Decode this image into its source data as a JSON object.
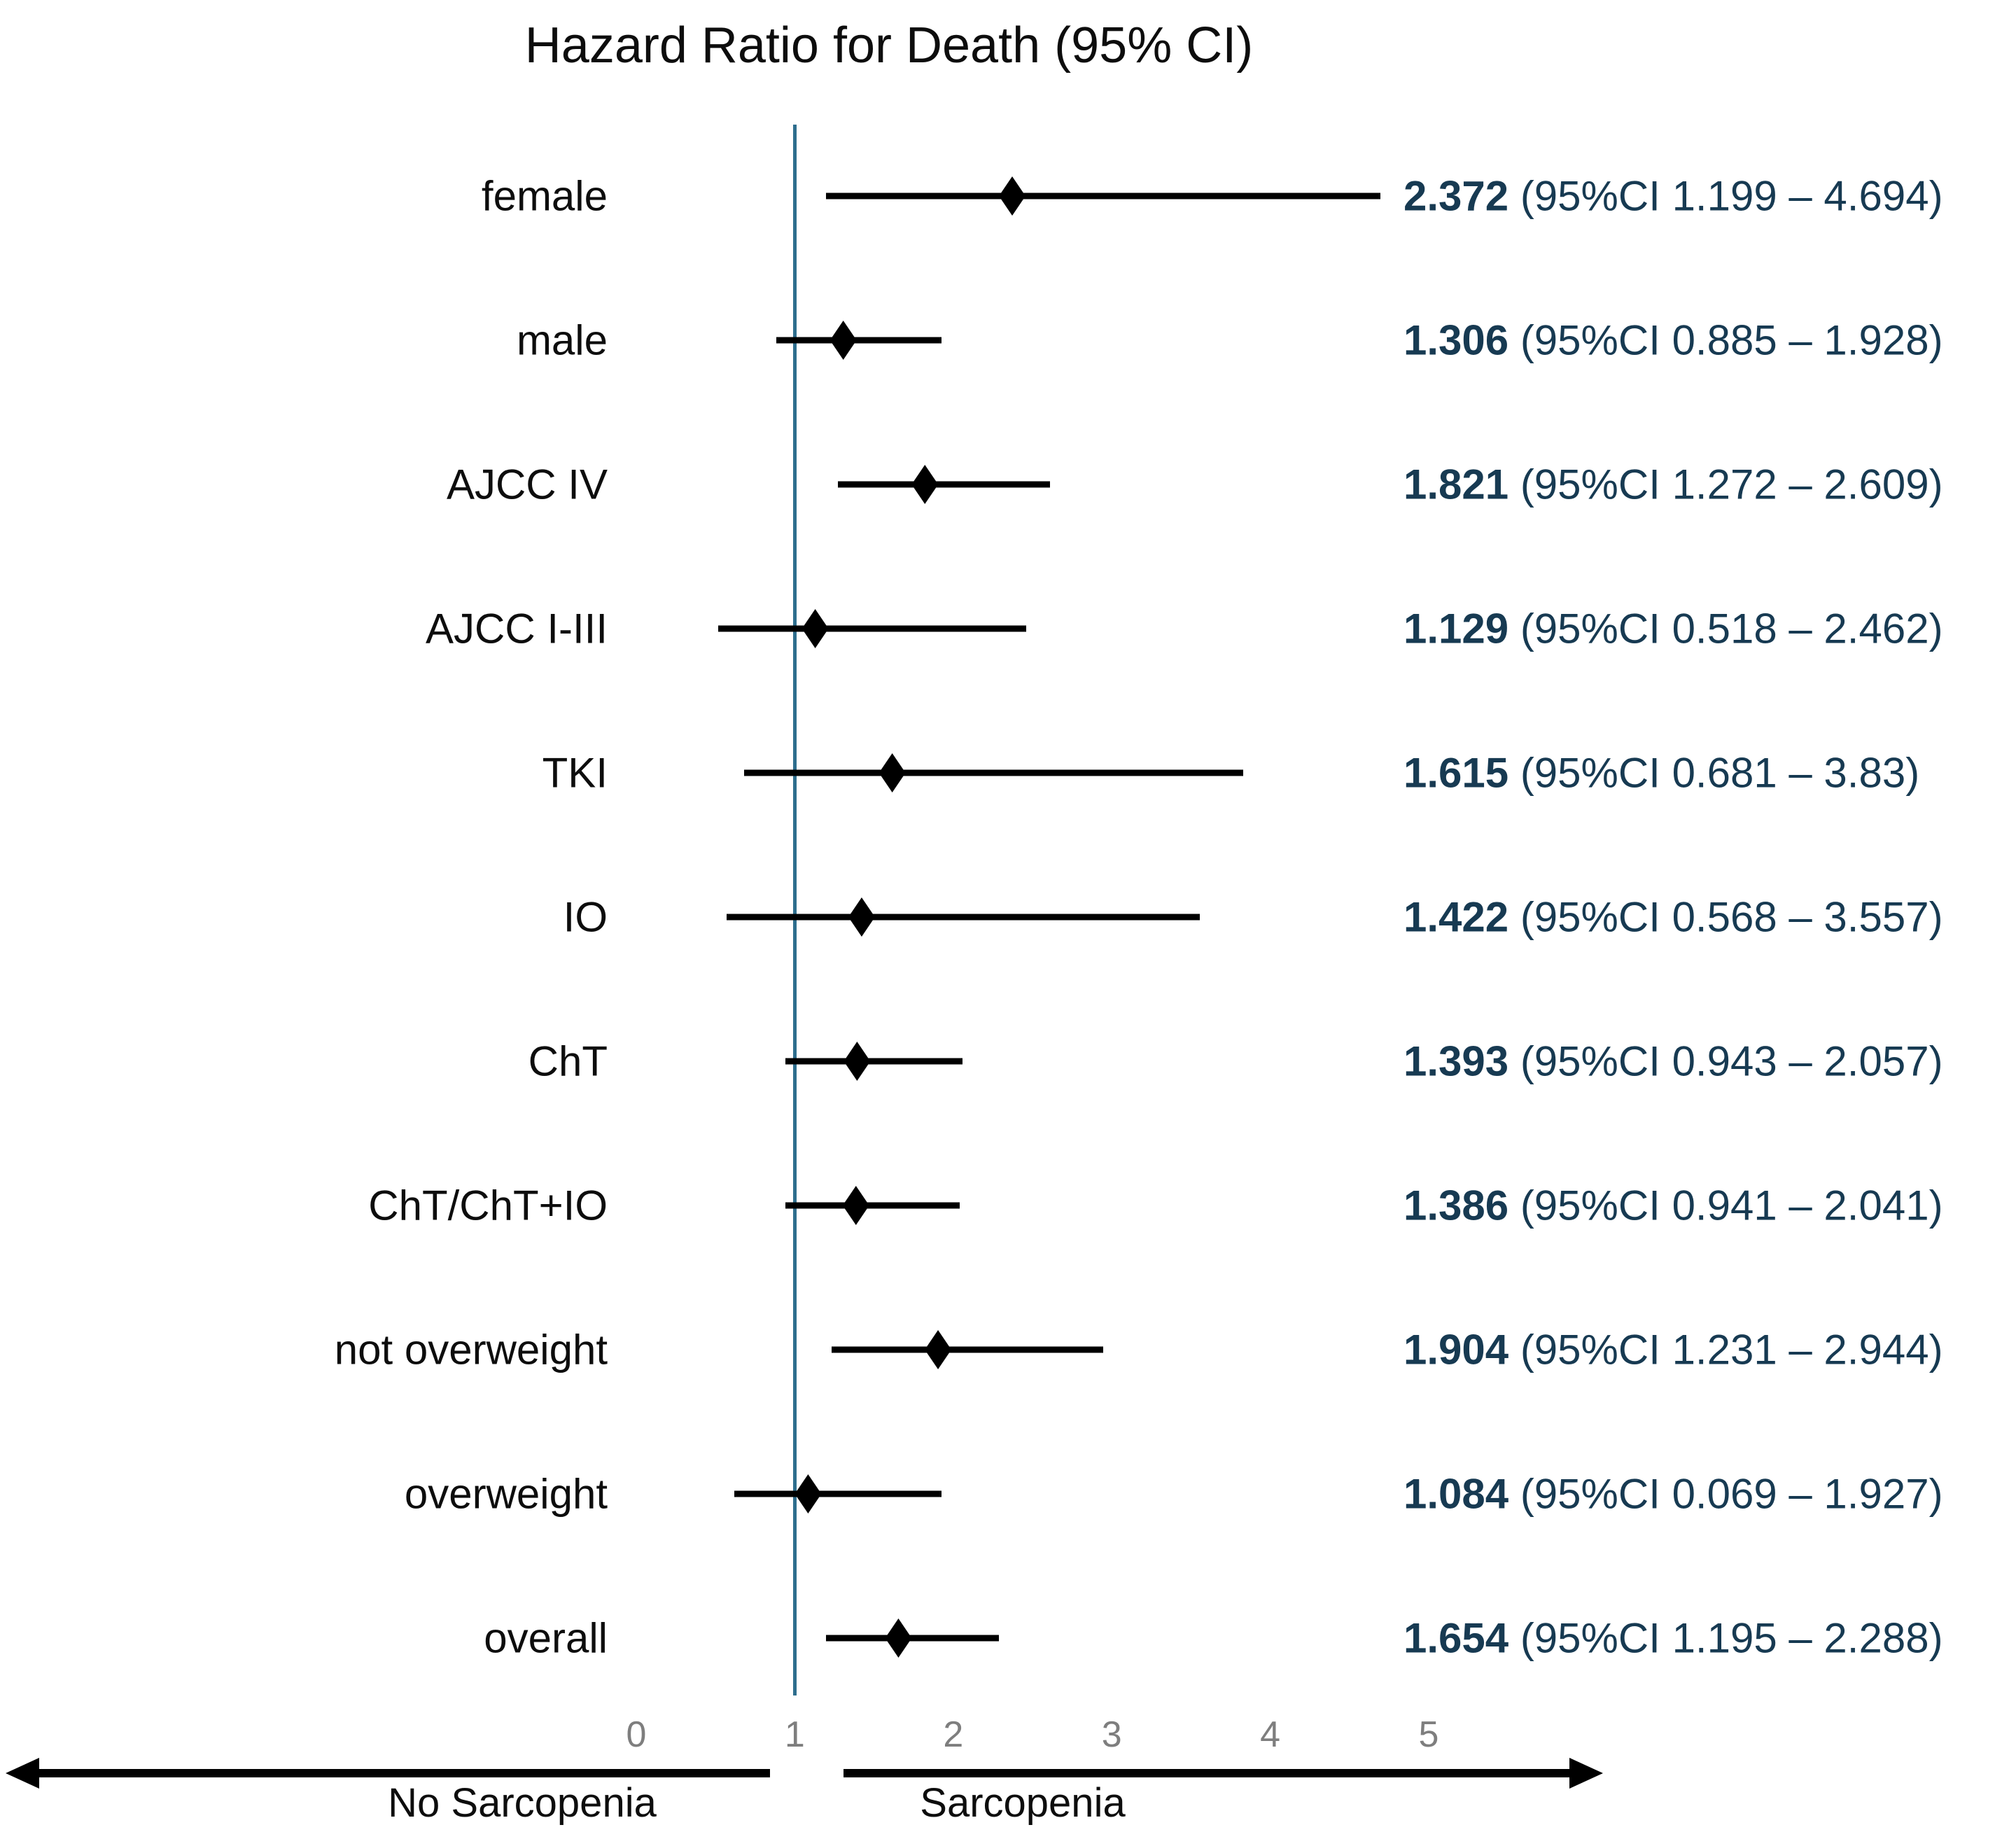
{
  "title": "Hazard Ratio for Death (95% CI)",
  "colors": {
    "background": "#ffffff",
    "reference_line": "#2e6e8e",
    "marker": "#000000",
    "value_text": "#173a52",
    "tick_text": "#7e7e7e",
    "label_text": "#0d0d0d"
  },
  "axis": {
    "ticks": [
      0,
      1,
      2,
      3,
      4,
      5
    ],
    "reference_value": 1,
    "left_direction_label": "No Sarcopenia",
    "right_direction_label": "Sarcopenia"
  },
  "chart_data": {
    "type": "forest",
    "title": "Hazard Ratio for Death (95% CI)",
    "xlim": [
      0,
      5
    ],
    "reference_line": 1,
    "legend_position": "none",
    "grid": false,
    "rows": [
      {
        "label": "female",
        "hr": 2.372,
        "ci_low": 1.199,
        "ci_high": 4.694,
        "hr_text": "2.372",
        "ci_text": "(95%CI 1.199 – 4.694)"
      },
      {
        "label": "male",
        "hr": 1.306,
        "ci_low": 0.885,
        "ci_high": 1.928,
        "hr_text": "1.306",
        "ci_text": "(95%CI 0.885 – 1.928)"
      },
      {
        "label": "AJCC IV",
        "hr": 1.821,
        "ci_low": 1.272,
        "ci_high": 2.609,
        "hr_text": "1.821",
        "ci_text": "(95%CI 1.272 – 2.609)"
      },
      {
        "label": "AJCC I-III",
        "hr": 1.129,
        "ci_low": 0.518,
        "ci_high": 2.462,
        "hr_text": "1.129",
        "ci_text": "(95%CI 0.518 – 2.462)"
      },
      {
        "label": "TKI",
        "hr": 1.615,
        "ci_low": 0.681,
        "ci_high": 3.83,
        "hr_text": "1.615",
        "ci_text": "(95%CI 0.681 – 3.83)"
      },
      {
        "label": "IO",
        "hr": 1.422,
        "ci_low": 0.568,
        "ci_high": 3.557,
        "hr_text": "1.422",
        "ci_text": "(95%CI 0.568 – 3.557)"
      },
      {
        "label": "ChT",
        "hr": 1.393,
        "ci_low": 0.943,
        "ci_high": 2.057,
        "hr_text": "1.393",
        "ci_text": "(95%CI 0.943 – 2.057)"
      },
      {
        "label": "ChT/ChT+IO",
        "hr": 1.386,
        "ci_low": 0.941,
        "ci_high": 2.041,
        "hr_text": "1.386",
        "ci_text": "(95%CI 0.941 – 2.041)"
      },
      {
        "label": "not overweight",
        "hr": 1.904,
        "ci_low": 1.231,
        "ci_high": 2.944,
        "hr_text": "1.904",
        "ci_text": "(95%CI 1.231 – 2.944)"
      },
      {
        "label": "overweight",
        "hr": 1.084,
        "ci_low": 0.069,
        "ci_high": 1.927,
        "plot_low": 0.62,
        "hr_text": "1.084",
        "ci_text": "(95%CI 0.069 – 1.927)"
      },
      {
        "label": "overall",
        "hr": 1.654,
        "ci_low": 1.195,
        "ci_high": 2.288,
        "hr_text": "1.654",
        "ci_text": "(95%CI 1.195 – 2.288)"
      }
    ]
  }
}
